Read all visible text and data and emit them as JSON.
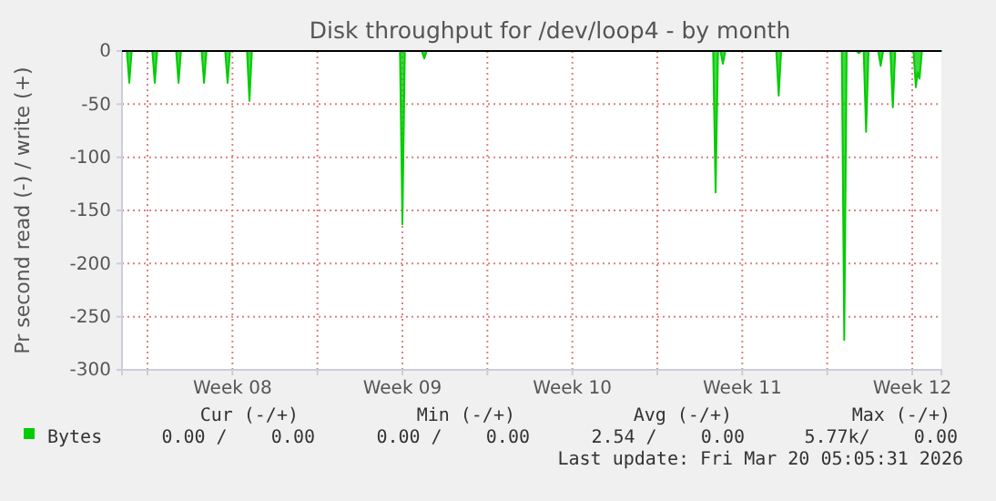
{
  "chart_data": {
    "type": "area",
    "title": "Disk throughput for /dev/loop4 - by month",
    "ylabel": "Pr second read (-) / write (+)",
    "xlim": [
      "2026-02-14T22:48",
      "2026-03-20T16:48"
    ],
    "xticks": [
      {
        "value": "2026-02-16",
        "label": null
      },
      {
        "value": "2026-02-19T12:00",
        "label": "Week 08"
      },
      {
        "value": "2026-02-23",
        "label": null
      },
      {
        "value": "2026-02-26T12:00",
        "label": "Week 09"
      },
      {
        "value": "2026-03-02",
        "label": null
      },
      {
        "value": "2026-03-05T12:00",
        "label": "Week 10"
      },
      {
        "value": "2026-03-09",
        "label": null
      },
      {
        "value": "2026-03-12T12:00",
        "label": "Week 11"
      },
      {
        "value": "2026-03-16",
        "label": null
      },
      {
        "value": "2026-03-19T12:00",
        "label": "Week 12"
      }
    ],
    "ylim": [
      -300,
      0
    ],
    "yticks": [
      -300,
      -250,
      -200,
      -150,
      -100,
      -50,
      0
    ],
    "grid": true,
    "legend": "bottom",
    "series": [
      {
        "name": "Bytes",
        "color": "#00cc00",
        "x": [
          "2026-02-15T00:00",
          "2026-02-15T03:36",
          "2026-02-15T06:00",
          "2026-02-15T08:24",
          "2026-02-16T04:48",
          "2026-02-16T07:12",
          "2026-02-16T09:36",
          "2026-02-17T04:19",
          "2026-02-17T06:43",
          "2026-02-17T09:07",
          "2026-02-18T05:31",
          "2026-02-18T07:55",
          "2026-02-18T10:19",
          "2026-02-19T04:48",
          "2026-02-19T07:12",
          "2026-02-19T09:36",
          "2026-02-20T02:24",
          "2026-02-20T04:48",
          "2026-02-20T07:12",
          "2026-02-26T09:36",
          "2026-02-26T12:00",
          "2026-02-26T14:24",
          "2026-02-27T07:12",
          "2026-02-27T09:36",
          "2026-02-27T12:00",
          "2026-03-11T07:12",
          "2026-03-11T09:36",
          "2026-03-11T12:00",
          "2026-03-11T14:24",
          "2026-03-11T16:48",
          "2026-03-11T19:12",
          "2026-03-13T21:36",
          "2026-03-14T00:00",
          "2026-03-14T02:24",
          "2026-03-16T14:24",
          "2026-03-16T16:48",
          "2026-03-16T19:12",
          "2026-03-17T04:48",
          "2026-03-17T07:12",
          "2026-03-17T09:36",
          "2026-03-17T12:00",
          "2026-03-17T14:24",
          "2026-03-17T16:48",
          "2026-03-18T02:24",
          "2026-03-18T04:48",
          "2026-03-18T07:12",
          "2026-03-18T14:24",
          "2026-03-18T16:48",
          "2026-03-18T19:12",
          "2026-03-19T13:12",
          "2026-03-19T15:36",
          "2026-03-19T17:17",
          "2026-03-19T19:12",
          "2026-03-19T21:36",
          "2026-03-20T16:48"
        ],
        "values": [
          0,
          0,
          -30,
          0,
          0,
          -30,
          0,
          0,
          -30,
          0,
          0,
          -30,
          0,
          0,
          -30,
          0,
          0,
          -47,
          0,
          0,
          -163,
          0,
          0,
          -7,
          0,
          0,
          -133,
          0,
          0,
          -12,
          0,
          0,
          -42,
          0,
          0,
          -272,
          0,
          0,
          -2,
          0,
          0,
          -76,
          0,
          0,
          -14,
          0,
          0,
          -53,
          0,
          0,
          -34,
          -20,
          -26,
          0,
          0
        ]
      }
    ],
    "annotations": [
      "Cur (-/+)",
      "Min (-/+)",
      "Avg (-/+)",
      "Max (-/+)",
      "0.00 /    0.00",
      "0.00 /    0.00",
      "2.54 /    0.00",
      "5.77k/    0.00",
      "Last update: Fri Mar 20 05:05:31 2026"
    ]
  }
}
